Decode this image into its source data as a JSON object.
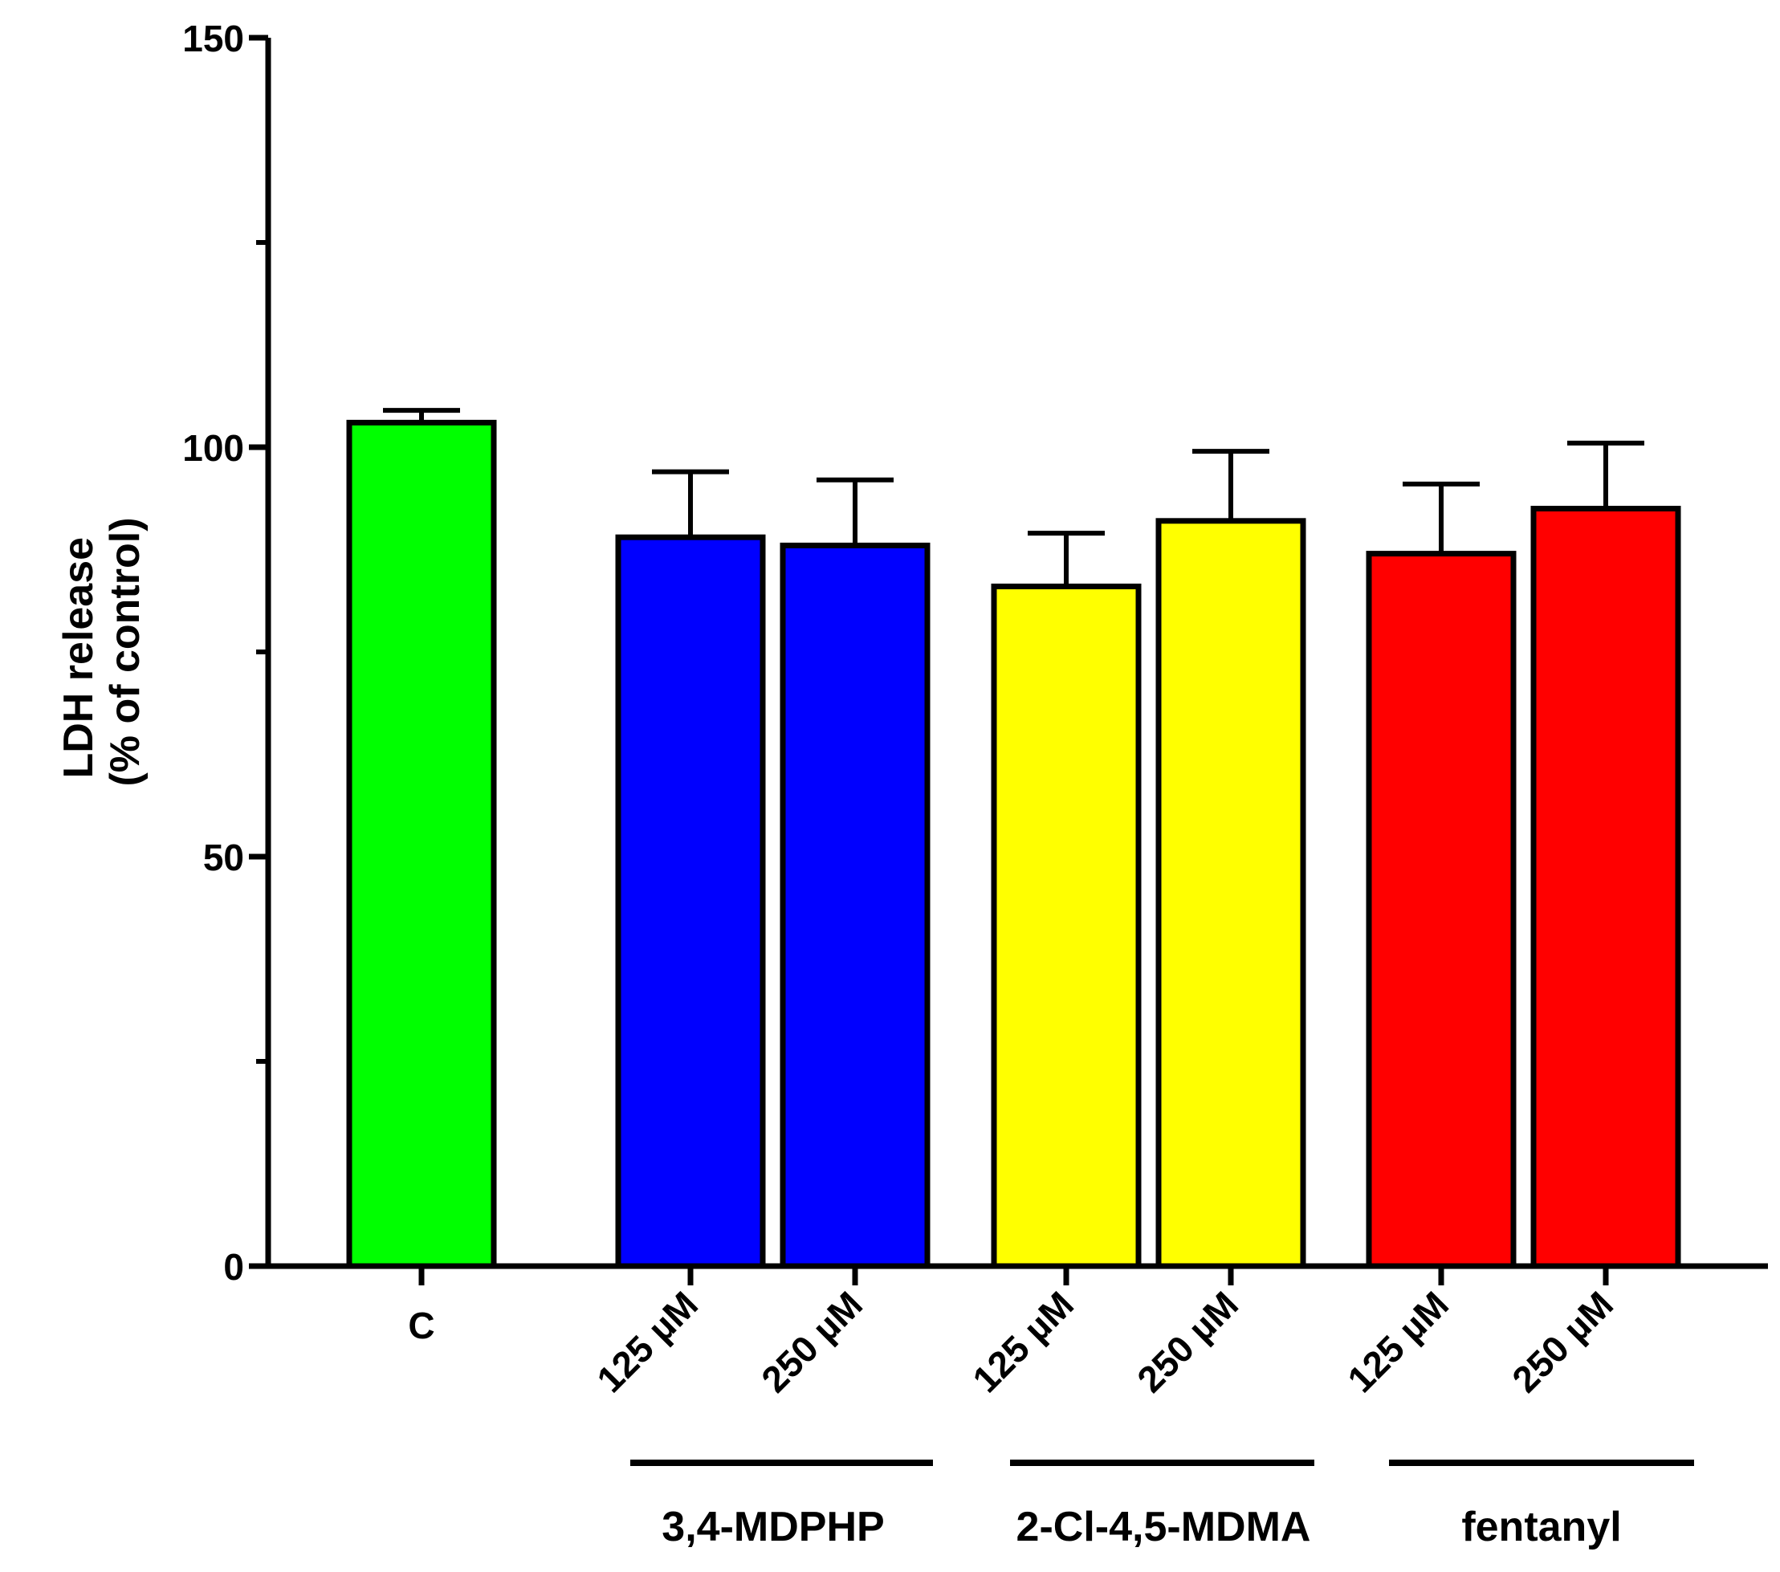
{
  "chart_data": {
    "type": "bar",
    "title": "",
    "xlabel": "",
    "ylabel_line1": "LDH release",
    "ylabel_line2": "(% of control)",
    "ylim": [
      0,
      150
    ],
    "yticks_major": [
      0,
      50,
      100,
      150
    ],
    "yticks_minor": [
      25,
      75,
      125
    ],
    "ytick_labels": [
      "0",
      "50",
      "100",
      "150"
    ],
    "grid": false,
    "categories": [
      "C",
      "125 µM",
      "250 µM",
      "125 µM",
      "250 µM",
      "125 µM",
      "250 µM"
    ],
    "groups": [
      {
        "label": "3,4-MDPHP",
        "bars": [
          1,
          2
        ]
      },
      {
        "label": "2-Cl-4,5-MDMA",
        "bars": [
          3,
          4
        ]
      },
      {
        "label": "fentanyl",
        "bars": [
          5,
          6
        ]
      }
    ],
    "values": [
      103,
      89,
      88,
      83,
      91,
      87,
      92.5
    ],
    "errors": [
      1.5,
      8,
      8,
      6.5,
      8.5,
      8.5,
      8
    ],
    "colors": [
      "#00ff00",
      "#0000ff",
      "#0000ff",
      "#ffff00",
      "#ffff00",
      "#ff0000",
      "#ff0000"
    ]
  }
}
